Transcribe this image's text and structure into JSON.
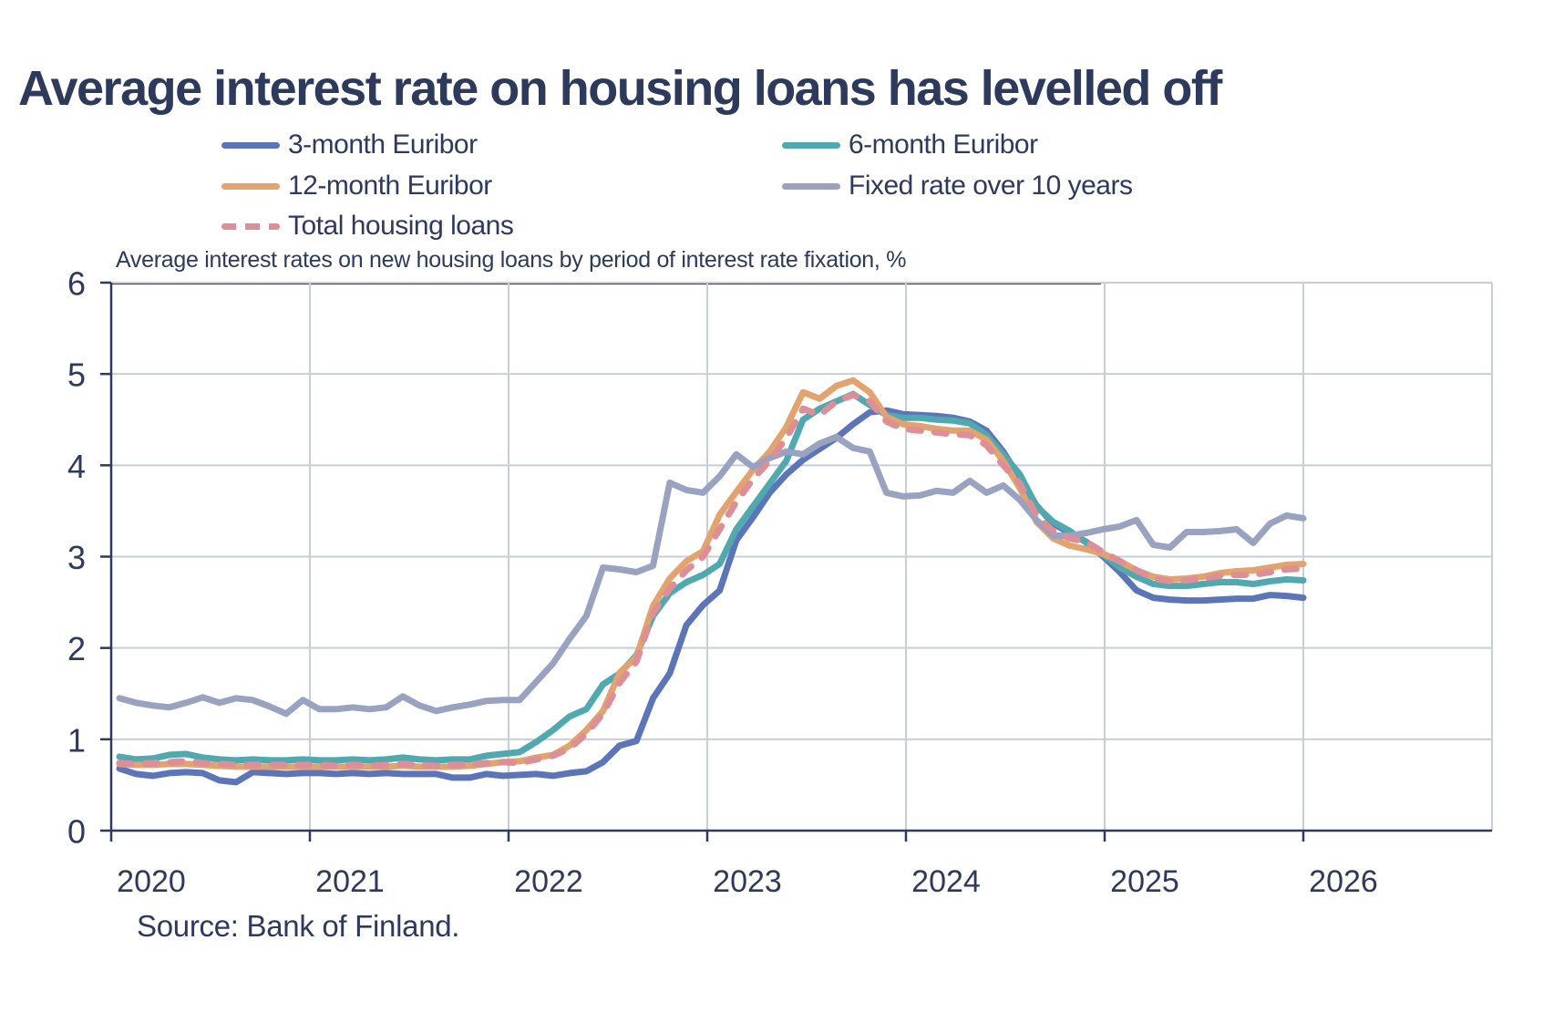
{
  "page": {
    "background": "#FFFFFF",
    "text_color": "#2E3A5C"
  },
  "title": "Average interest rate on housing loans has levelled off",
  "subtitle": "Average interest rates on new housing loans by period of interest rate fixation, %",
  "source": "Source: Bank of Finland.",
  "legend": {
    "items": [
      {
        "label": "3-month Euribor",
        "color": "#5C75B9",
        "dash": false
      },
      {
        "label": "6-month Euribor",
        "color": "#4FA9AF",
        "dash": false
      },
      {
        "label": "12-month Euribor",
        "color": "#E3A36F",
        "dash": false
      },
      {
        "label": "Fixed rate over 10 years",
        "color": "#99A2C0",
        "dash": false
      },
      {
        "label": "Total housing loans",
        "color": "#DD8E96",
        "dash": true
      }
    ]
  },
  "chart_data": {
    "type": "line",
    "title": "Average interest rates on new housing loans by period of interest rate fixation, %",
    "xlabel": "",
    "ylabel": "%",
    "x_unit": "month",
    "x_start": "2020-01",
    "x_end": "2025-12",
    "x_tick_labels": [
      "2020",
      "2021",
      "2022",
      "2023",
      "2024",
      "2025",
      "2026"
    ],
    "y_tick_labels": [
      "0",
      "1",
      "2",
      "3",
      "4",
      "5",
      "6"
    ],
    "ylim": [
      0,
      6
    ],
    "grid": true,
    "legend_position": "top",
    "colors": {
      "grid": "#C9CDD8",
      "axis": "#2E3A5C"
    },
    "series": [
      {
        "name": "3-month Euribor",
        "color": "#5C75B9",
        "style": "solid",
        "values": [
          0.68,
          0.62,
          0.6,
          0.63,
          0.64,
          0.63,
          0.55,
          0.53,
          0.64,
          0.63,
          0.62,
          0.63,
          0.63,
          0.62,
          0.63,
          0.62,
          0.63,
          0.62,
          0.62,
          0.62,
          0.58,
          0.58,
          0.62,
          0.6,
          0.61,
          0.62,
          0.6,
          0.63,
          0.65,
          0.75,
          0.93,
          0.98,
          1.45,
          1.72,
          2.25,
          2.47,
          2.63,
          3.18,
          3.43,
          3.7,
          3.9,
          4.06,
          4.18,
          4.3,
          4.45,
          4.58,
          4.6,
          4.56,
          4.55,
          4.54,
          4.52,
          4.48,
          4.38,
          4.15,
          3.86,
          3.56,
          3.36,
          3.26,
          3.16,
          3.0,
          2.83,
          2.63,
          2.55,
          2.53,
          2.52,
          2.52,
          2.53,
          2.54,
          2.54,
          2.58,
          2.57,
          2.55
        ]
      },
      {
        "name": "6-month Euribor",
        "color": "#4FA9AF",
        "style": "solid",
        "values": [
          0.81,
          0.78,
          0.79,
          0.83,
          0.84,
          0.8,
          0.78,
          0.77,
          0.78,
          0.77,
          0.77,
          0.78,
          0.77,
          0.77,
          0.78,
          0.77,
          0.78,
          0.8,
          0.78,
          0.77,
          0.78,
          0.78,
          0.82,
          0.84,
          0.86,
          0.97,
          1.1,
          1.25,
          1.33,
          1.6,
          1.72,
          1.92,
          2.35,
          2.6,
          2.72,
          2.8,
          2.92,
          3.3,
          3.55,
          3.8,
          4.05,
          4.5,
          4.62,
          4.7,
          4.78,
          4.66,
          4.55,
          4.52,
          4.52,
          4.5,
          4.49,
          4.46,
          4.33,
          4.12,
          3.9,
          3.55,
          3.38,
          3.28,
          3.15,
          3.02,
          2.88,
          2.78,
          2.7,
          2.68,
          2.68,
          2.7,
          2.72,
          2.72,
          2.7,
          2.73,
          2.75,
          2.74
        ]
      },
      {
        "name": "12-month Euribor",
        "color": "#E3A36F",
        "style": "solid",
        "values": [
          0.73,
          0.72,
          0.72,
          0.73,
          0.73,
          0.72,
          0.71,
          0.7,
          0.7,
          0.7,
          0.7,
          0.7,
          0.7,
          0.7,
          0.7,
          0.7,
          0.7,
          0.71,
          0.7,
          0.7,
          0.7,
          0.71,
          0.73,
          0.75,
          0.76,
          0.8,
          0.83,
          0.93,
          1.1,
          1.31,
          1.73,
          1.9,
          2.46,
          2.76,
          2.95,
          3.06,
          3.46,
          3.71,
          3.95,
          4.15,
          4.42,
          4.8,
          4.73,
          4.87,
          4.93,
          4.8,
          4.53,
          4.45,
          4.43,
          4.4,
          4.38,
          4.38,
          4.28,
          4.05,
          3.75,
          3.38,
          3.2,
          3.12,
          3.08,
          3.03,
          2.95,
          2.85,
          2.78,
          2.75,
          2.76,
          2.78,
          2.82,
          2.84,
          2.85,
          2.88,
          2.91,
          2.92
        ]
      },
      {
        "name": "Fixed rate over 10 years",
        "color": "#99A2C0",
        "style": "solid",
        "values": [
          1.45,
          1.4,
          1.37,
          1.35,
          1.4,
          1.46,
          1.4,
          1.45,
          1.43,
          1.36,
          1.28,
          1.43,
          1.33,
          1.33,
          1.35,
          1.33,
          1.35,
          1.47,
          1.37,
          1.31,
          1.35,
          1.38,
          1.42,
          1.43,
          1.43,
          1.63,
          1.83,
          2.1,
          2.35,
          2.88,
          2.86,
          2.83,
          2.9,
          3.81,
          3.73,
          3.7,
          3.88,
          4.12,
          3.98,
          4.08,
          4.15,
          4.12,
          4.24,
          4.31,
          4.19,
          4.15,
          3.7,
          3.66,
          3.67,
          3.72,
          3.7,
          3.83,
          3.7,
          3.78,
          3.62,
          3.4,
          3.23,
          3.23,
          3.26,
          3.3,
          3.33,
          3.4,
          3.13,
          3.1,
          3.27,
          3.27,
          3.28,
          3.3,
          3.15,
          3.36,
          3.45,
          3.42
        ]
      },
      {
        "name": "Total housing loans",
        "color": "#DD8E96",
        "style": "dashed",
        "values": [
          0.74,
          0.73,
          0.74,
          0.75,
          0.76,
          0.74,
          0.73,
          0.72,
          0.72,
          0.72,
          0.72,
          0.72,
          0.72,
          0.71,
          0.72,
          0.71,
          0.72,
          0.73,
          0.72,
          0.71,
          0.72,
          0.72,
          0.74,
          0.75,
          0.74,
          0.78,
          0.82,
          0.9,
          1.06,
          1.28,
          1.62,
          1.85,
          2.38,
          2.65,
          2.85,
          3.0,
          3.3,
          3.6,
          3.85,
          4.05,
          4.3,
          4.62,
          4.55,
          4.7,
          4.77,
          4.7,
          4.48,
          4.4,
          4.38,
          4.36,
          4.34,
          4.33,
          4.22,
          4.0,
          3.8,
          3.45,
          3.28,
          3.2,
          3.16,
          3.05,
          2.95,
          2.85,
          2.76,
          2.73,
          2.74,
          2.76,
          2.79,
          2.8,
          2.8,
          2.83,
          2.86,
          2.87
        ]
      }
    ]
  }
}
